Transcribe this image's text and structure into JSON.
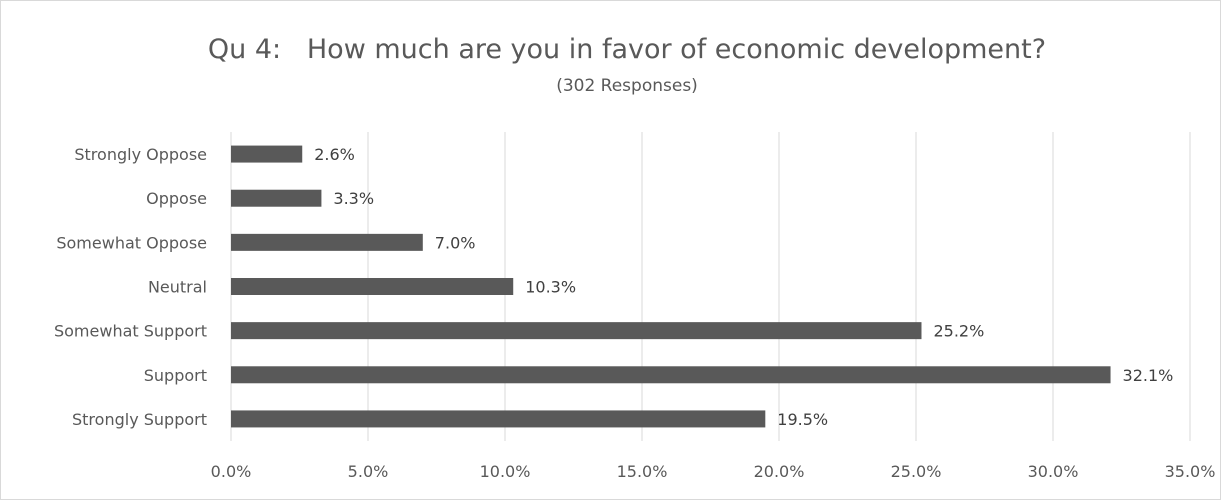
{
  "chart_data": {
    "type": "bar",
    "orientation": "horizontal",
    "title": "Qu 4:   How much are you in favor of economic development?",
    "subtitle": "(302 Responses)",
    "categories": [
      "Strongly Oppose",
      "Oppose",
      "Somewhat Oppose",
      "Neutral",
      "Somewhat Support",
      "Support",
      "Strongly Support"
    ],
    "values": [
      2.6,
      3.3,
      7.0,
      10.3,
      25.2,
      32.1,
      19.5
    ],
    "data_labels": [
      "2.6%",
      "3.3%",
      "7.0%",
      "10.3%",
      "25.2%",
      "32.1%",
      "19.5%"
    ],
    "x_ticks": [
      "0.0%",
      "5.0%",
      "10.0%",
      "15.0%",
      "20.0%",
      "25.0%",
      "30.0%",
      "35.0%"
    ],
    "xlim": [
      0,
      35
    ],
    "xlabel": "",
    "ylabel": "",
    "grid": true,
    "legend": "none",
    "bar_color": "#595959",
    "gridline_color": "#d9d9d9"
  }
}
